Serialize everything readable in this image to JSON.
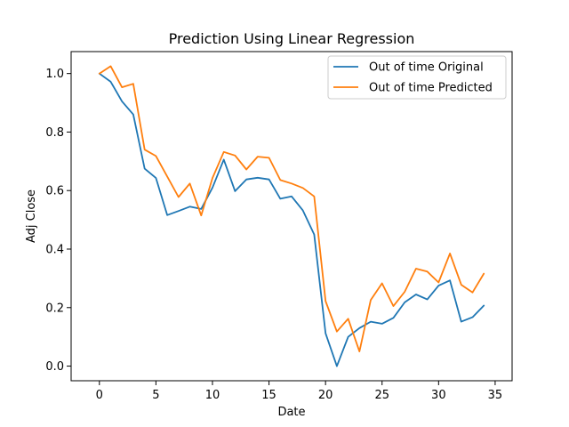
{
  "chart_data": {
    "type": "line",
    "title": "Prediction Using Linear Regression",
    "xlabel": "Date",
    "ylabel": "Adj Close",
    "xlim": [
      -2.5,
      36.5
    ],
    "ylim": [
      -0.05,
      1.075
    ],
    "xticks": [
      0,
      5,
      10,
      15,
      20,
      25,
      30,
      35
    ],
    "yticks": [
      0.0,
      0.2,
      0.4,
      0.6,
      0.8,
      1.0
    ],
    "xtick_labels": [
      "0",
      "5",
      "10",
      "15",
      "20",
      "25",
      "30",
      "35"
    ],
    "ytick_labels": [
      "0.0",
      "0.2",
      "0.4",
      "0.6",
      "0.8",
      "1.0"
    ],
    "grid": false,
    "legend_position": "top-right",
    "x": [
      0,
      1,
      2,
      3,
      4,
      5,
      6,
      7,
      8,
      9,
      10,
      11,
      12,
      13,
      14,
      15,
      16,
      17,
      18,
      19,
      20,
      21,
      22,
      23,
      24,
      25,
      26,
      27,
      28,
      29,
      30,
      31,
      32,
      33,
      34
    ],
    "series": [
      {
        "name": "Out of time Original",
        "color": "#1f77b4",
        "values": [
          1.0,
          0.972,
          0.905,
          0.86,
          0.675,
          0.643,
          0.516,
          0.53,
          0.545,
          0.537,
          0.61,
          0.706,
          0.598,
          0.638,
          0.644,
          0.638,
          0.572,
          0.58,
          0.532,
          0.45,
          0.112,
          0.0,
          0.1,
          0.13,
          0.152,
          0.145,
          0.165,
          0.218,
          0.245,
          0.228,
          0.275,
          0.293,
          0.152,
          0.167,
          0.207
        ]
      },
      {
        "name": "Out of time Predicted",
        "color": "#ff7f0e",
        "values": [
          1.0,
          1.025,
          0.953,
          0.965,
          0.74,
          0.718,
          0.648,
          0.578,
          0.624,
          0.515,
          0.643,
          0.732,
          0.72,
          0.672,
          0.716,
          0.712,
          0.636,
          0.624,
          0.609,
          0.58,
          0.222,
          0.118,
          0.162,
          0.05,
          0.226,
          0.283,
          0.205,
          0.254,
          0.333,
          0.323,
          0.286,
          0.385,
          0.278,
          0.252,
          0.316
        ]
      }
    ]
  }
}
